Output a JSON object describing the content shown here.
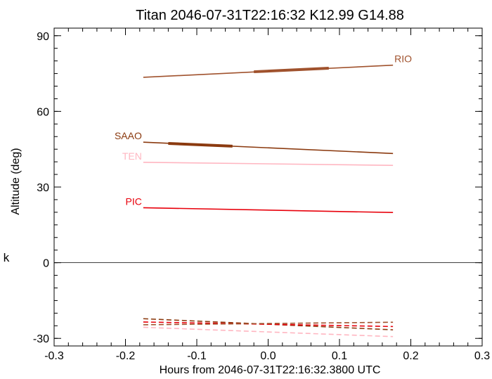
{
  "chart_data": {
    "type": "line",
    "title": "Titan 2046-07-31T22:16:32  K12.99  G14.88",
    "xlabel": "Hours from 2046-07-31T22:16:32.3800 UTC",
    "ylabel": "Altitude (deg)",
    "xlim": [
      -0.3,
      0.3
    ],
    "ylim": [
      -33,
      93
    ],
    "x_ticks": [
      "-0.3",
      "-0.2",
      "-0.1",
      "0.0",
      "0.1",
      "0.2",
      "0.3"
    ],
    "y_ticks": [
      "-30",
      "0",
      "30",
      "60",
      "90"
    ],
    "grid": false,
    "reference_line_y": 0,
    "stray_text": "k",
    "series": [
      {
        "name": "RIO",
        "color": "#a0522d",
        "style": "solid",
        "x": [
          -0.175,
          0.175
        ],
        "y": [
          73.5,
          78.3
        ],
        "highlight": {
          "x": [
            -0.02,
            0.085
          ],
          "y": [
            75.7,
            77.1
          ]
        }
      },
      {
        "name": "SAAO",
        "color": "#8b3a0f",
        "style": "solid",
        "x": [
          -0.175,
          0.175
        ],
        "y": [
          47.8,
          43.3
        ],
        "highlight": {
          "x": [
            -0.14,
            -0.05
          ],
          "y": [
            47.3,
            46.2
          ]
        }
      },
      {
        "name": "TEN",
        "color": "#ffb6c1",
        "style": "solid",
        "x": [
          -0.175,
          0.175
        ],
        "y": [
          39.8,
          38.6
        ]
      },
      {
        "name": "PIC",
        "color": "#e8000b",
        "style": "solid",
        "x": [
          -0.175,
          0.175
        ],
        "y": [
          21.8,
          19.9
        ]
      },
      {
        "name": "",
        "color": "#8b3a0f",
        "style": "dashed",
        "x": [
          -0.175,
          0.175
        ],
        "y": [
          -22.2,
          -26.6
        ]
      },
      {
        "name": "",
        "color": "#e8000b",
        "style": "dashed",
        "x": [
          -0.175,
          0.175
        ],
        "y": [
          -23.5,
          -25.3
        ]
      },
      {
        "name": "",
        "color": "#ffb6c1",
        "style": "dashed",
        "x": [
          -0.175,
          0.175
        ],
        "y": [
          -25.6,
          -29.3
        ]
      },
      {
        "name": "",
        "color": "#a0522d",
        "style": "dashed",
        "x": [
          -0.175,
          0.175
        ],
        "y": [
          -24.6,
          -23.6
        ]
      }
    ]
  }
}
